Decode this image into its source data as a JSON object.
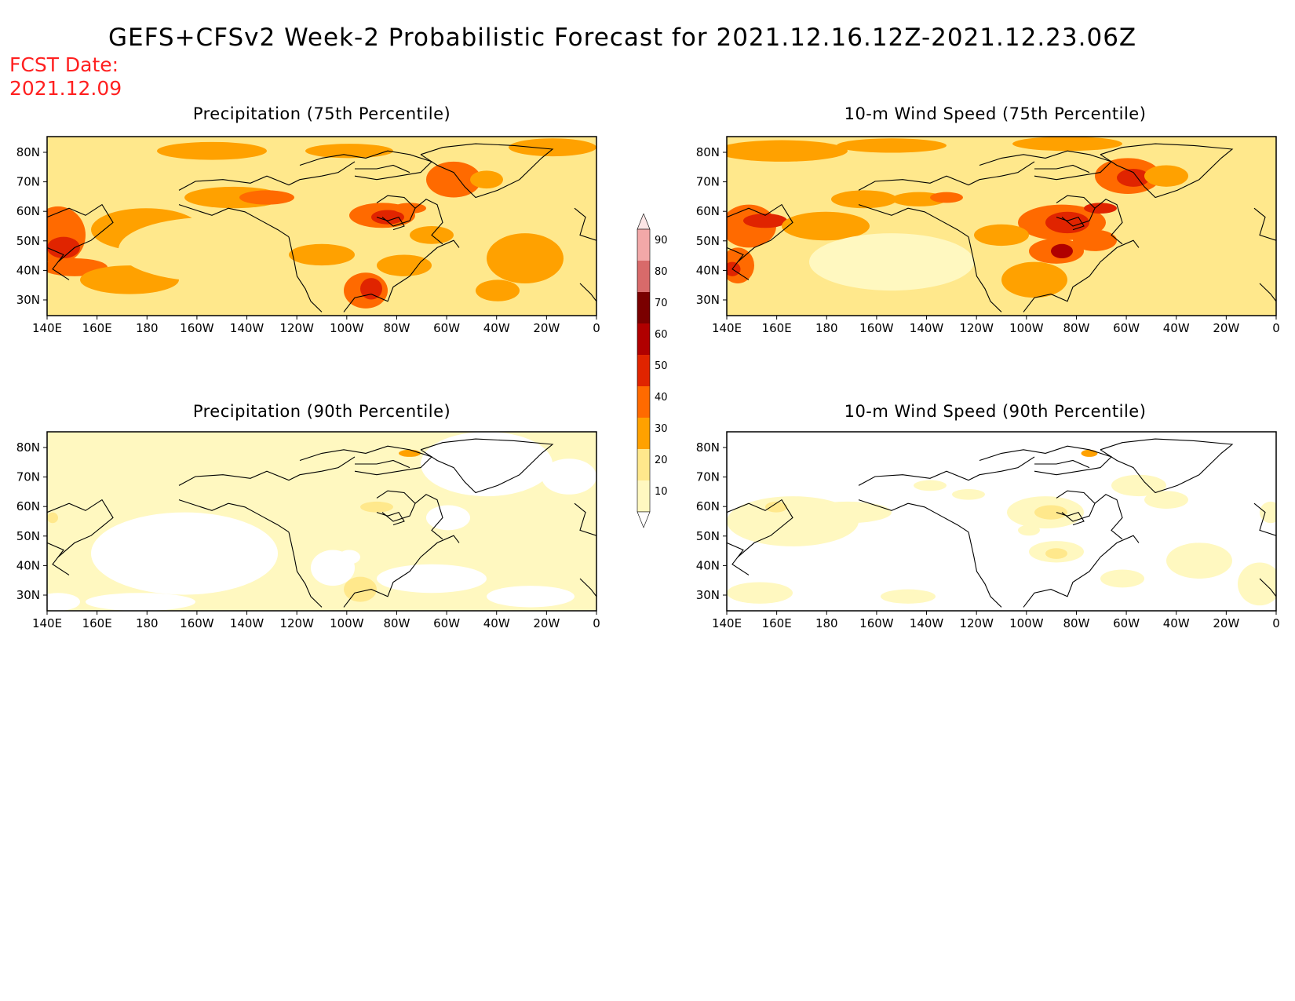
{
  "title": "GEFS+CFSv2 Week-2 Probabilistic Forecast for 2021.12.16.12Z-2021.12.23.06Z",
  "fcst_label": "FCST Date:",
  "fcst_date": "2021.12.09",
  "lat_labels": [
    "80N",
    "70N",
    "60N",
    "50N",
    "40N",
    "30N"
  ],
  "lon_labels": [
    "140E",
    "160E",
    "180",
    "160W",
    "140W",
    "120W",
    "100W",
    "80W",
    "60W",
    "40W",
    "20W",
    "0"
  ],
  "colorbar": {
    "levels": [
      "10",
      "20",
      "30",
      "40",
      "50",
      "60",
      "70",
      "80",
      "90"
    ],
    "colors": [
      "#fff8c0",
      "#ffe88c",
      "#ffa100",
      "#ff6a00",
      "#e02400",
      "#b00000",
      "#7a0000",
      "#d86a6a",
      "#f2a8a8"
    ]
  },
  "panels": [
    {
      "title": "Precipitation (75th Percentile)",
      "level": "high"
    },
    {
      "title": "10-m Wind Speed (75th Percentile)",
      "level": "high"
    },
    {
      "title": "Precipitation (90th Percentile)",
      "level": "low"
    },
    {
      "title": "10-m Wind Speed (90th Percentile)",
      "level": "low"
    }
  ]
}
